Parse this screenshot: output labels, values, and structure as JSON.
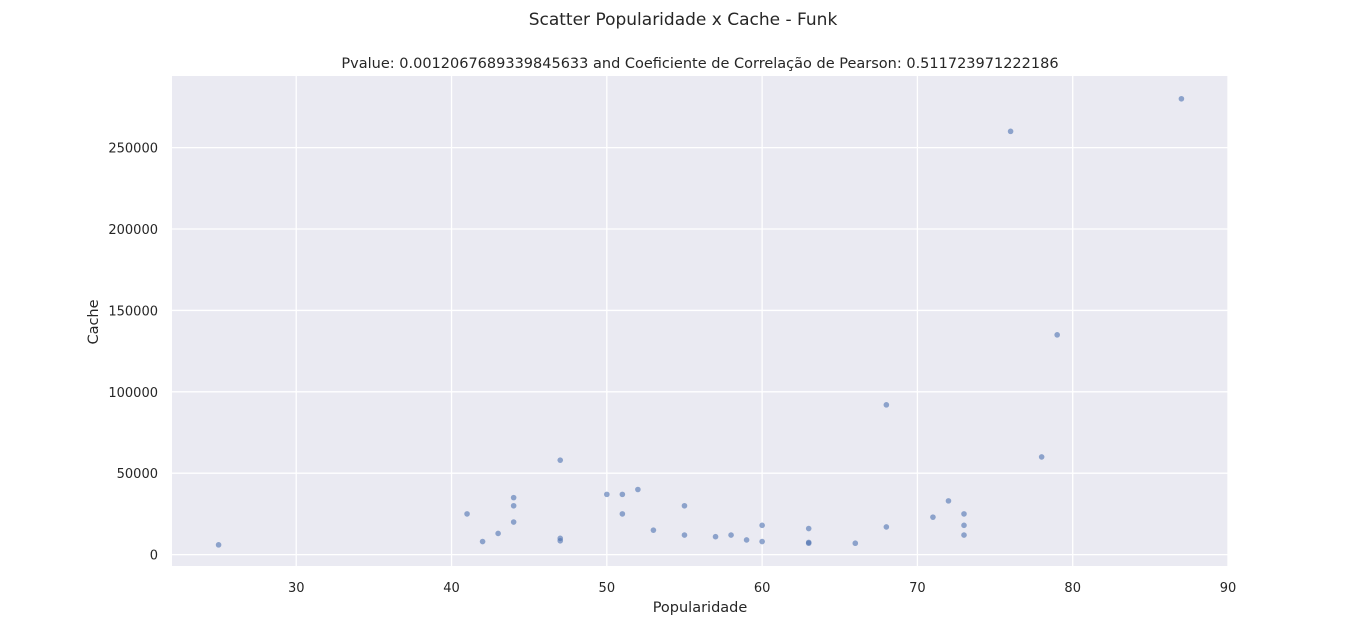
{
  "figure": {
    "suptitle": "Scatter Popularidade x Cache - Funk"
  },
  "chart_data": {
    "type": "scatter",
    "title": "Pvalue: 0.0012067689339845633 and Coeficiente de Correlação de Pearson: 0.511723971222186",
    "xlabel": "Popularidade",
    "ylabel": "Cache",
    "xlim": [
      22,
      90
    ],
    "ylim": [
      -7000,
      294000
    ],
    "xticks": [
      30,
      40,
      50,
      60,
      70,
      80,
      90
    ],
    "yticks": [
      0,
      50000,
      100000,
      150000,
      200000,
      250000
    ],
    "grid": true,
    "background": "#eaeaf2",
    "grid_color": "#ffffff",
    "marker_color": "#4c72b0",
    "points": [
      {
        "x": 25,
        "y": 6000
      },
      {
        "x": 41,
        "y": 25000
      },
      {
        "x": 42,
        "y": 8000
      },
      {
        "x": 43,
        "y": 13000
      },
      {
        "x": 44,
        "y": 35000
      },
      {
        "x": 44,
        "y": 30000
      },
      {
        "x": 44,
        "y": 20000
      },
      {
        "x": 47,
        "y": 58000
      },
      {
        "x": 47,
        "y": 10000
      },
      {
        "x": 47,
        "y": 8500
      },
      {
        "x": 50,
        "y": 37000
      },
      {
        "x": 51,
        "y": 37000
      },
      {
        "x": 51,
        "y": 25000
      },
      {
        "x": 52,
        "y": 40000
      },
      {
        "x": 53,
        "y": 15000
      },
      {
        "x": 55,
        "y": 30000
      },
      {
        "x": 55,
        "y": 12000
      },
      {
        "x": 57,
        "y": 11000
      },
      {
        "x": 58,
        "y": 12000
      },
      {
        "x": 59,
        "y": 9000
      },
      {
        "x": 60,
        "y": 18000
      },
      {
        "x": 60,
        "y": 8000
      },
      {
        "x": 63,
        "y": 16000
      },
      {
        "x": 63,
        "y": 7000
      },
      {
        "x": 63,
        "y": 7500
      },
      {
        "x": 66,
        "y": 7000
      },
      {
        "x": 68,
        "y": 92000
      },
      {
        "x": 68,
        "y": 17000
      },
      {
        "x": 71,
        "y": 23000
      },
      {
        "x": 72,
        "y": 33000
      },
      {
        "x": 73,
        "y": 25000
      },
      {
        "x": 73,
        "y": 18000
      },
      {
        "x": 73,
        "y": 12000
      },
      {
        "x": 76,
        "y": 260000
      },
      {
        "x": 78,
        "y": 60000
      },
      {
        "x": 79,
        "y": 135000
      },
      {
        "x": 87,
        "y": 280000
      }
    ]
  }
}
